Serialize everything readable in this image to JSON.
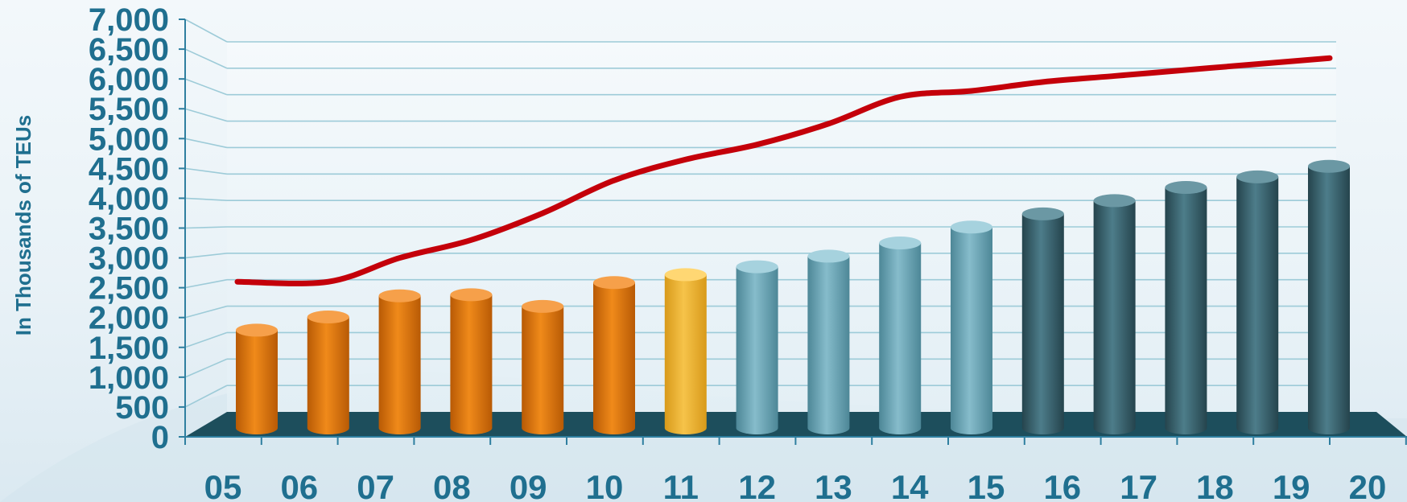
{
  "chart_data": {
    "type": "bar",
    "title": "",
    "xlabel": "",
    "ylabel": "In Thousands of TEUs",
    "ylim": [
      0,
      7000
    ],
    "y_ticks": [
      "0",
      "500",
      "1,000",
      "1,500",
      "2,000",
      "2,500",
      "3,000",
      "3,500",
      "4,000",
      "4,500",
      "5,000",
      "5,500",
      "6,000",
      "6,500",
      "7,000"
    ],
    "categories": [
      "05",
      "06",
      "07",
      "08",
      "09",
      "10",
      "11",
      "12",
      "13",
      "14",
      "15",
      "16",
      "17",
      "18",
      "19",
      "20"
    ],
    "grid": true,
    "series": [
      {
        "type": "bar",
        "values": [
          1850,
          2100,
          2500,
          2520,
          2300,
          2750,
          2900,
          3050,
          3250,
          3500,
          3800,
          4050,
          4300,
          4550,
          4750,
          4950
        ]
      },
      {
        "type": "line",
        "values": [
          2600,
          2600,
          3000,
          3300,
          3750,
          4300,
          4650,
          4900,
          5250,
          5700,
          5800,
          5950,
          6050,
          6150,
          6250,
          6350
        ]
      }
    ],
    "colors": {
      "bars_actual": "#e07a10",
      "bar_highlight": "#f2b63a",
      "bars_forecast_light": "#6fa8b8",
      "bars_forecast_dark": "#2f5661",
      "line": "#c4000a",
      "floor": "#1d4e5c",
      "grid": "#9dcbd8",
      "text": "#1f6f8f"
    }
  }
}
